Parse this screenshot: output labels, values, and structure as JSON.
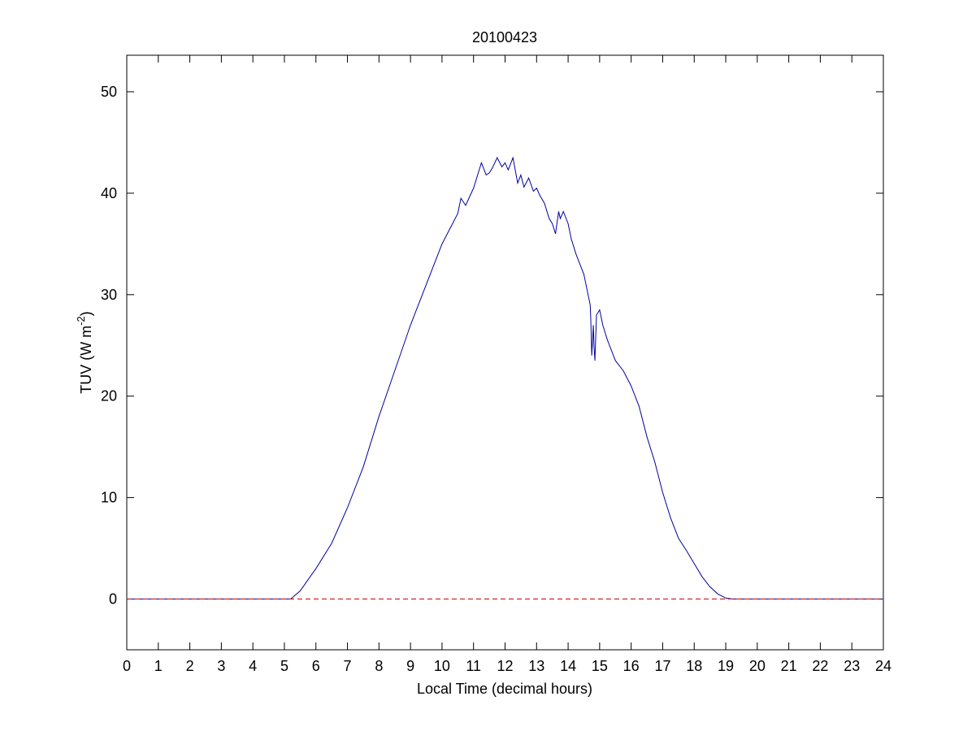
{
  "chart_data": {
    "type": "line",
    "title": "20100423",
    "xlabel": "Local Time (decimal hours)",
    "ylabel": [
      "TUV (W m",
      "-2",
      ")"
    ],
    "xlim": [
      0,
      24
    ],
    "xticks": [
      0,
      1,
      2,
      3,
      4,
      5,
      6,
      7,
      8,
      9,
      10,
      11,
      12,
      13,
      14,
      15,
      16,
      17,
      18,
      19,
      20,
      21,
      22,
      23,
      24
    ],
    "ylim": [
      -5,
      53.6
    ],
    "yticks": [
      0,
      10,
      20,
      30,
      40,
      50
    ],
    "grid": false,
    "series": [
      {
        "color": "#0000a0",
        "style": "solid",
        "x": [
          0,
          5,
          5.2,
          5.5,
          6,
          6.5,
          7,
          7.5,
          8,
          8.5,
          9,
          9.5,
          10,
          10.25,
          10.5,
          10.6,
          10.75,
          11,
          11.1,
          11.25,
          11.4,
          11.5,
          11.6,
          11.75,
          11.9,
          12,
          12.1,
          12.25,
          12.4,
          12.5,
          12.6,
          12.75,
          12.9,
          13,
          13.1,
          13.25,
          13.4,
          13.5,
          13.6,
          13.7,
          13.75,
          13.85,
          14,
          14.1,
          14.25,
          14.4,
          14.5,
          14.6,
          14.7,
          14.72,
          14.75,
          14.8,
          14.82,
          14.85,
          14.9,
          15,
          15.1,
          15.25,
          15.5,
          15.75,
          16,
          16.25,
          16.5,
          16.75,
          17,
          17.25,
          17.5,
          17.75,
          18,
          18.25,
          18.5,
          18.75,
          19,
          19.2,
          24
        ],
        "values": [
          0,
          0,
          0,
          0.8,
          3,
          5.5,
          9,
          13,
          18,
          22.5,
          27,
          31,
          35,
          36.5,
          38,
          39.5,
          38.8,
          40.5,
          41.5,
          43,
          41.8,
          42,
          42.5,
          43.5,
          42.6,
          43,
          42.3,
          43.5,
          41,
          41.8,
          40.6,
          41.5,
          40.2,
          40.5,
          39.8,
          39,
          37.5,
          37,
          36,
          38.2,
          37.5,
          38.2,
          37,
          35.5,
          34,
          32.8,
          32,
          30.5,
          29,
          27.5,
          24,
          27,
          25,
          23.5,
          28,
          28.5,
          27,
          25.5,
          23.5,
          22.5,
          21,
          19,
          16,
          13.5,
          10.5,
          8,
          6,
          4.8,
          3.5,
          2.2,
          1.2,
          0.5,
          0.1,
          0,
          0
        ]
      },
      {
        "color": "#d00000",
        "style": "dashed",
        "x": [
          0,
          24
        ],
        "values": [
          0,
          0
        ]
      }
    ]
  }
}
